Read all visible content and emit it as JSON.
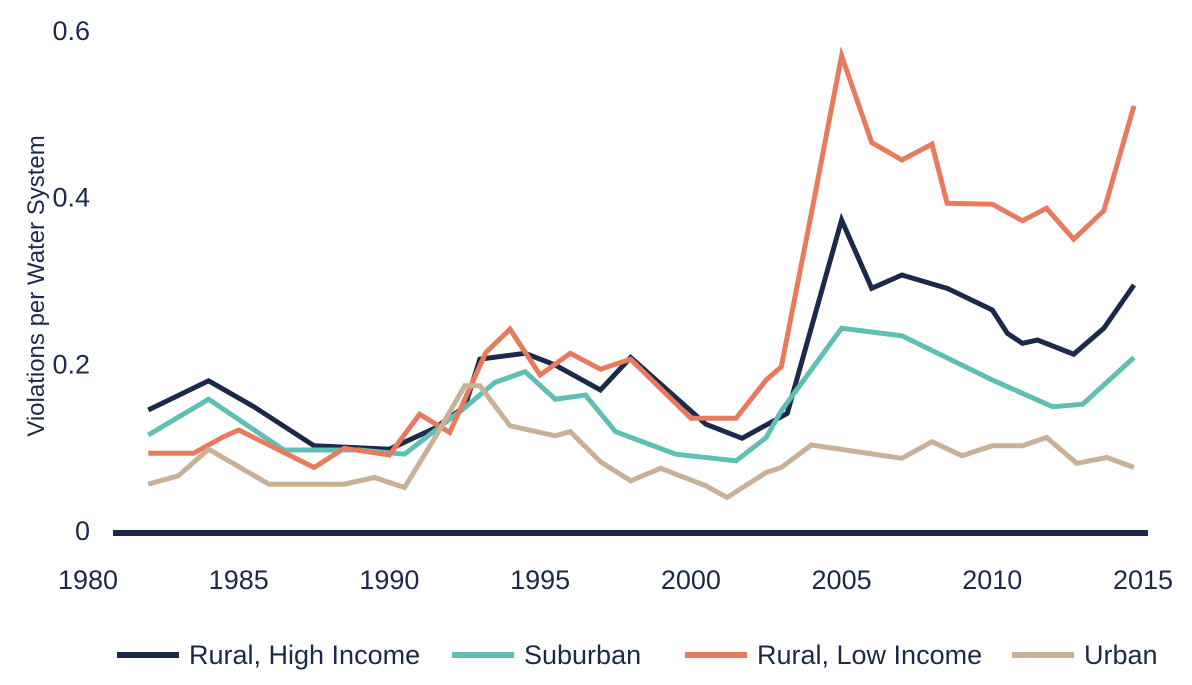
{
  "chart_data": {
    "type": "line",
    "title": "",
    "xlabel": "",
    "ylabel": "Violations per Water System",
    "xlim": [
      1980,
      2015
    ],
    "ylim": [
      0,
      0.6
    ],
    "x_ticks": [
      "1980",
      "1985",
      "1990",
      "1995",
      "2000",
      "2005",
      "2010",
      "2015"
    ],
    "y_ticks": [
      "0",
      "0.2",
      "0.4",
      "0.6"
    ],
    "grid": false,
    "legend_position": "bottom",
    "series": [
      {
        "name": "Rural, High Income",
        "color": "#1b2a4a",
        "points": [
          [
            1982,
            0.144
          ],
          [
            1984,
            0.179
          ],
          [
            1985.5,
            0.148
          ],
          [
            1987.5,
            0.101
          ],
          [
            1990,
            0.097
          ],
          [
            1991.5,
            0.122
          ],
          [
            1992.5,
            0.148
          ],
          [
            1993,
            0.205
          ],
          [
            1994.5,
            0.212
          ],
          [
            1995.5,
            0.198
          ],
          [
            1997,
            0.168
          ],
          [
            1998,
            0.207
          ],
          [
            2000.5,
            0.127
          ],
          [
            2001.7,
            0.11
          ],
          [
            2002.7,
            0.13
          ],
          [
            2003.2,
            0.14
          ],
          [
            2005,
            0.372
          ],
          [
            2006,
            0.29
          ],
          [
            2007,
            0.306
          ],
          [
            2008.5,
            0.29
          ],
          [
            2010,
            0.264
          ],
          [
            2010.5,
            0.236
          ],
          [
            2011,
            0.224
          ],
          [
            2011.5,
            0.228
          ],
          [
            2012.7,
            0.211
          ],
          [
            2013.7,
            0.242
          ],
          [
            2014.7,
            0.294
          ]
        ]
      },
      {
        "name": "Suburban",
        "color": "#5ebfb2",
        "points": [
          [
            1982,
            0.114
          ],
          [
            1984,
            0.157
          ],
          [
            1986.5,
            0.096
          ],
          [
            1989,
            0.096
          ],
          [
            1990.5,
            0.091
          ],
          [
            1992.5,
            0.147
          ],
          [
            1993.5,
            0.177
          ],
          [
            1994.5,
            0.19
          ],
          [
            1995.5,
            0.157
          ],
          [
            1996.5,
            0.162
          ],
          [
            1997.5,
            0.118
          ],
          [
            1999.5,
            0.091
          ],
          [
            2001.5,
            0.083
          ],
          [
            2002.5,
            0.111
          ],
          [
            2003,
            0.143
          ],
          [
            2005,
            0.242
          ],
          [
            2007,
            0.233
          ],
          [
            2010,
            0.18
          ],
          [
            2012,
            0.148
          ],
          [
            2013,
            0.151
          ],
          [
            2014.7,
            0.207
          ]
        ]
      },
      {
        "name": "Rural, Low Income",
        "color": "#e87a5e",
        "points": [
          [
            1982,
            0.092
          ],
          [
            1983.5,
            0.092
          ],
          [
            1984.5,
            0.112
          ],
          [
            1985,
            0.12
          ],
          [
            1987.5,
            0.075
          ],
          [
            1988.5,
            0.098
          ],
          [
            1990,
            0.09
          ],
          [
            1991,
            0.139
          ],
          [
            1992,
            0.117
          ],
          [
            1993.2,
            0.213
          ],
          [
            1994,
            0.241
          ],
          [
            1995,
            0.186
          ],
          [
            1996,
            0.212
          ],
          [
            1997,
            0.193
          ],
          [
            1998,
            0.205
          ],
          [
            2000,
            0.134
          ],
          [
            2001.5,
            0.134
          ],
          [
            2002.5,
            0.18
          ],
          [
            2003,
            0.196
          ],
          [
            2004,
            0.38
          ],
          [
            2005,
            0.569
          ],
          [
            2006,
            0.465
          ],
          [
            2007,
            0.444
          ],
          [
            2008,
            0.463
          ],
          [
            2008.5,
            0.392
          ],
          [
            2010,
            0.391
          ],
          [
            2011,
            0.371
          ],
          [
            2011.8,
            0.386
          ],
          [
            2012.7,
            0.349
          ],
          [
            2013.7,
            0.383
          ],
          [
            2014.7,
            0.509
          ]
        ]
      },
      {
        "name": "Urban",
        "color": "#c8b197",
        "points": [
          [
            1982,
            0.055
          ],
          [
            1983,
            0.065
          ],
          [
            1984,
            0.097
          ],
          [
            1986,
            0.055
          ],
          [
            1988.5,
            0.055
          ],
          [
            1989.5,
            0.063
          ],
          [
            1990.5,
            0.051
          ],
          [
            1991.5,
            0.11
          ],
          [
            1992.5,
            0.173
          ],
          [
            1993,
            0.173
          ],
          [
            1994,
            0.125
          ],
          [
            1995.5,
            0.113
          ],
          [
            1996,
            0.118
          ],
          [
            1997,
            0.082
          ],
          [
            1998,
            0.059
          ],
          [
            1999,
            0.074
          ],
          [
            2000.5,
            0.053
          ],
          [
            2001.2,
            0.039
          ],
          [
            2002.5,
            0.069
          ],
          [
            2003,
            0.075
          ],
          [
            2004,
            0.102
          ],
          [
            2007,
            0.086
          ],
          [
            2008,
            0.106
          ],
          [
            2009,
            0.089
          ],
          [
            2010,
            0.101
          ],
          [
            2011,
            0.101
          ],
          [
            2011.8,
            0.111
          ],
          [
            2012.8,
            0.08
          ],
          [
            2013.8,
            0.087
          ],
          [
            2014.7,
            0.075
          ]
        ]
      }
    ]
  }
}
